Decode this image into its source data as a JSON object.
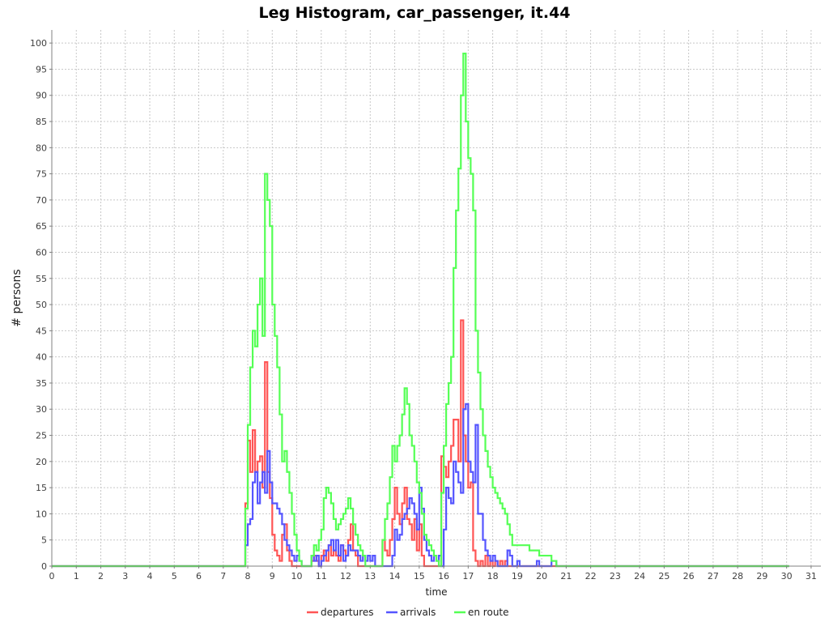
{
  "chart_data": {
    "type": "line",
    "title": "Leg Histogram, car_passenger, it.44",
    "xlabel": "time",
    "ylabel": "# persons",
    "xlim": [
      0,
      31.4
    ],
    "ylim": [
      0,
      102.5
    ],
    "xticks": [
      0,
      1,
      2,
      3,
      4,
      5,
      6,
      7,
      8,
      9,
      10,
      11,
      12,
      13,
      14,
      15,
      16,
      17,
      18,
      19,
      20,
      21,
      22,
      23,
      24,
      25,
      26,
      27,
      28,
      29,
      30,
      31
    ],
    "yticks": [
      0,
      5,
      10,
      15,
      20,
      25,
      30,
      35,
      40,
      45,
      50,
      55,
      60,
      65,
      70,
      75,
      80,
      85,
      90,
      95,
      100
    ],
    "grid": true,
    "legend_position": "bottom",
    "series": [
      {
        "name": "departures",
        "color": "#ff5555",
        "points": [
          [
            0,
            0
          ],
          [
            7.9,
            0
          ],
          [
            7.9,
            12
          ],
          [
            8.0,
            24
          ],
          [
            8.1,
            18
          ],
          [
            8.2,
            26
          ],
          [
            8.3,
            18
          ],
          [
            8.4,
            20
          ],
          [
            8.5,
            21
          ],
          [
            8.6,
            15
          ],
          [
            8.7,
            39
          ],
          [
            8.8,
            18
          ],
          [
            8.9,
            13
          ],
          [
            9.0,
            6
          ],
          [
            9.1,
            3
          ],
          [
            9.2,
            2
          ],
          [
            9.3,
            1
          ],
          [
            9.4,
            6
          ],
          [
            9.5,
            8
          ],
          [
            9.6,
            3
          ],
          [
            9.7,
            1
          ],
          [
            9.8,
            0
          ],
          [
            10.6,
            0
          ],
          [
            10.6,
            1
          ],
          [
            10.7,
            2
          ],
          [
            10.8,
            1
          ],
          [
            10.9,
            0
          ],
          [
            11.0,
            2
          ],
          [
            11.1,
            3
          ],
          [
            11.2,
            1
          ],
          [
            11.3,
            4
          ],
          [
            11.4,
            2
          ],
          [
            11.5,
            3
          ],
          [
            11.6,
            2
          ],
          [
            11.7,
            1
          ],
          [
            11.8,
            4
          ],
          [
            11.9,
            3
          ],
          [
            12.0,
            2
          ],
          [
            12.1,
            5
          ],
          [
            12.2,
            8
          ],
          [
            12.3,
            3
          ],
          [
            12.4,
            2
          ],
          [
            12.5,
            0
          ],
          [
            13.5,
            0
          ],
          [
            13.5,
            5
          ],
          [
            13.6,
            3
          ],
          [
            13.7,
            2
          ],
          [
            13.8,
            5
          ],
          [
            13.9,
            9
          ],
          [
            14.0,
            15
          ],
          [
            14.1,
            10
          ],
          [
            14.2,
            8
          ],
          [
            14.3,
            12
          ],
          [
            14.4,
            15
          ],
          [
            14.5,
            9
          ],
          [
            14.6,
            8
          ],
          [
            14.7,
            5
          ],
          [
            14.8,
            9
          ],
          [
            14.9,
            3
          ],
          [
            15.0,
            8
          ],
          [
            15.1,
            2
          ],
          [
            15.2,
            0
          ],
          [
            15.9,
            0
          ],
          [
            15.9,
            21
          ],
          [
            16.0,
            19
          ],
          [
            16.1,
            17
          ],
          [
            16.2,
            20
          ],
          [
            16.3,
            23
          ],
          [
            16.4,
            28
          ],
          [
            16.5,
            28
          ],
          [
            16.6,
            20
          ],
          [
            16.7,
            47
          ],
          [
            16.8,
            25
          ],
          [
            16.9,
            20
          ],
          [
            17.0,
            15
          ],
          [
            17.1,
            16
          ],
          [
            17.2,
            3
          ],
          [
            17.3,
            1
          ],
          [
            17.4,
            0
          ],
          [
            17.5,
            1
          ],
          [
            17.6,
            0
          ],
          [
            17.7,
            2
          ],
          [
            17.8,
            0
          ],
          [
            17.9,
            1
          ],
          [
            18.0,
            0
          ],
          [
            18.1,
            1
          ],
          [
            18.2,
            0
          ],
          [
            18.3,
            1
          ],
          [
            18.4,
            0
          ],
          [
            18.5,
            1
          ],
          [
            18.6,
            0
          ],
          [
            30.1,
            0
          ]
        ]
      },
      {
        "name": "arrivals",
        "color": "#5555ff",
        "points": [
          [
            0,
            0
          ],
          [
            7.9,
            0
          ],
          [
            7.9,
            4
          ],
          [
            8.0,
            8
          ],
          [
            8.1,
            9
          ],
          [
            8.2,
            16
          ],
          [
            8.3,
            18
          ],
          [
            8.4,
            12
          ],
          [
            8.5,
            16
          ],
          [
            8.6,
            18
          ],
          [
            8.7,
            14
          ],
          [
            8.8,
            22
          ],
          [
            8.9,
            16
          ],
          [
            9.0,
            12
          ],
          [
            9.1,
            12
          ],
          [
            9.2,
            11
          ],
          [
            9.3,
            10
          ],
          [
            9.4,
            8
          ],
          [
            9.5,
            5
          ],
          [
            9.6,
            4
          ],
          [
            9.7,
            3
          ],
          [
            9.8,
            2
          ],
          [
            9.9,
            1
          ],
          [
            10.0,
            2
          ],
          [
            10.1,
            1
          ],
          [
            10.2,
            0
          ],
          [
            10.6,
            0
          ],
          [
            10.6,
            2
          ],
          [
            10.7,
            1
          ],
          [
            10.8,
            2
          ],
          [
            10.9,
            0
          ],
          [
            11.0,
            1
          ],
          [
            11.1,
            2
          ],
          [
            11.2,
            3
          ],
          [
            11.3,
            4
          ],
          [
            11.4,
            5
          ],
          [
            11.5,
            3
          ],
          [
            11.6,
            5
          ],
          [
            11.7,
            2
          ],
          [
            11.8,
            4
          ],
          [
            11.9,
            1
          ],
          [
            12.0,
            2
          ],
          [
            12.1,
            4
          ],
          [
            12.2,
            3
          ],
          [
            12.3,
            3
          ],
          [
            12.4,
            3
          ],
          [
            12.5,
            2
          ],
          [
            12.6,
            1
          ],
          [
            12.7,
            2
          ],
          [
            12.8,
            1
          ],
          [
            12.9,
            2
          ],
          [
            13.0,
            1
          ],
          [
            13.1,
            2
          ],
          [
            13.2,
            0
          ],
          [
            13.9,
            0
          ],
          [
            13.9,
            2
          ],
          [
            14.0,
            7
          ],
          [
            14.1,
            5
          ],
          [
            14.2,
            6
          ],
          [
            14.3,
            9
          ],
          [
            14.4,
            10
          ],
          [
            14.5,
            11
          ],
          [
            14.6,
            13
          ],
          [
            14.7,
            12
          ],
          [
            14.8,
            10
          ],
          [
            14.9,
            7
          ],
          [
            15.0,
            15
          ],
          [
            15.1,
            11
          ],
          [
            15.2,
            5
          ],
          [
            15.3,
            3
          ],
          [
            15.4,
            2
          ],
          [
            15.5,
            1
          ],
          [
            15.6,
            2
          ],
          [
            15.7,
            1
          ],
          [
            15.8,
            2
          ],
          [
            15.9,
            0
          ],
          [
            16.0,
            7
          ],
          [
            16.1,
            15
          ],
          [
            16.2,
            13
          ],
          [
            16.3,
            12
          ],
          [
            16.4,
            20
          ],
          [
            16.5,
            18
          ],
          [
            16.6,
            16
          ],
          [
            16.7,
            14
          ],
          [
            16.8,
            30
          ],
          [
            16.9,
            31
          ],
          [
            17.0,
            20
          ],
          [
            17.1,
            18
          ],
          [
            17.2,
            16
          ],
          [
            17.3,
            27
          ],
          [
            17.4,
            10
          ],
          [
            17.5,
            10
          ],
          [
            17.6,
            5
          ],
          [
            17.7,
            3
          ],
          [
            17.8,
            2
          ],
          [
            17.9,
            1
          ],
          [
            18.0,
            2
          ],
          [
            18.1,
            1
          ],
          [
            18.2,
            0
          ],
          [
            18.6,
            0
          ],
          [
            18.6,
            3
          ],
          [
            18.7,
            2
          ],
          [
            18.8,
            0
          ],
          [
            18.9,
            0
          ],
          [
            19.0,
            1
          ],
          [
            19.1,
            0
          ],
          [
            19.8,
            0
          ],
          [
            19.8,
            1
          ],
          [
            19.9,
            0
          ],
          [
            20.4,
            0
          ],
          [
            20.4,
            1
          ],
          [
            20.6,
            0
          ],
          [
            30.1,
            0
          ]
        ]
      },
      {
        "name": "en route",
        "color": "#55ff55",
        "points": [
          [
            0,
            0
          ],
          [
            7.9,
            0
          ],
          [
            7.9,
            11
          ],
          [
            8.0,
            27
          ],
          [
            8.1,
            38
          ],
          [
            8.2,
            45
          ],
          [
            8.3,
            42
          ],
          [
            8.4,
            50
          ],
          [
            8.5,
            55
          ],
          [
            8.6,
            44
          ],
          [
            8.7,
            75
          ],
          [
            8.8,
            70
          ],
          [
            8.9,
            65
          ],
          [
            9.0,
            50
          ],
          [
            9.1,
            44
          ],
          [
            9.2,
            38
          ],
          [
            9.3,
            29
          ],
          [
            9.4,
            20
          ],
          [
            9.5,
            22
          ],
          [
            9.6,
            18
          ],
          [
            9.7,
            14
          ],
          [
            9.8,
            10
          ],
          [
            9.9,
            6
          ],
          [
            10.0,
            3
          ],
          [
            10.1,
            1
          ],
          [
            10.2,
            0
          ],
          [
            10.6,
            0
          ],
          [
            10.6,
            2
          ],
          [
            10.7,
            4
          ],
          [
            10.8,
            3
          ],
          [
            10.9,
            5
          ],
          [
            11.0,
            7
          ],
          [
            11.1,
            13
          ],
          [
            11.2,
            15
          ],
          [
            11.3,
            14
          ],
          [
            11.4,
            12
          ],
          [
            11.5,
            9
          ],
          [
            11.6,
            7
          ],
          [
            11.7,
            8
          ],
          [
            11.8,
            9
          ],
          [
            11.9,
            10
          ],
          [
            12.0,
            11
          ],
          [
            12.1,
            13
          ],
          [
            12.2,
            11
          ],
          [
            12.3,
            8
          ],
          [
            12.4,
            6
          ],
          [
            12.5,
            4
          ],
          [
            12.6,
            3
          ],
          [
            12.7,
            2
          ],
          [
            12.8,
            0
          ],
          [
            13.5,
            0
          ],
          [
            13.5,
            5
          ],
          [
            13.6,
            9
          ],
          [
            13.7,
            12
          ],
          [
            13.8,
            17
          ],
          [
            13.9,
            23
          ],
          [
            14.0,
            20
          ],
          [
            14.1,
            23
          ],
          [
            14.2,
            25
          ],
          [
            14.3,
            29
          ],
          [
            14.4,
            34
          ],
          [
            14.5,
            31
          ],
          [
            14.6,
            25
          ],
          [
            14.7,
            23
          ],
          [
            14.8,
            20
          ],
          [
            14.9,
            16
          ],
          [
            15.0,
            14
          ],
          [
            15.1,
            10
          ],
          [
            15.2,
            6
          ],
          [
            15.3,
            5
          ],
          [
            15.4,
            4
          ],
          [
            15.5,
            3
          ],
          [
            15.6,
            2
          ],
          [
            15.7,
            1
          ],
          [
            15.8,
            0
          ],
          [
            15.9,
            14
          ],
          [
            16.0,
            23
          ],
          [
            16.1,
            31
          ],
          [
            16.2,
            35
          ],
          [
            16.3,
            40
          ],
          [
            16.4,
            57
          ],
          [
            16.5,
            68
          ],
          [
            16.6,
            76
          ],
          [
            16.7,
            90
          ],
          [
            16.8,
            98
          ],
          [
            16.9,
            85
          ],
          [
            17.0,
            78
          ],
          [
            17.1,
            75
          ],
          [
            17.2,
            68
          ],
          [
            17.3,
            45
          ],
          [
            17.4,
            37
          ],
          [
            17.5,
            30
          ],
          [
            17.6,
            25
          ],
          [
            17.7,
            22
          ],
          [
            17.8,
            19
          ],
          [
            17.9,
            17
          ],
          [
            18.0,
            15
          ],
          [
            18.1,
            14
          ],
          [
            18.2,
            13
          ],
          [
            18.3,
            12
          ],
          [
            18.4,
            11
          ],
          [
            18.5,
            10
          ],
          [
            18.6,
            8
          ],
          [
            18.7,
            6
          ],
          [
            18.8,
            4
          ],
          [
            19.0,
            4
          ],
          [
            19.5,
            3
          ],
          [
            19.9,
            2
          ],
          [
            20.4,
            1
          ],
          [
            20.6,
            0
          ],
          [
            30.1,
            0
          ]
        ]
      }
    ]
  }
}
